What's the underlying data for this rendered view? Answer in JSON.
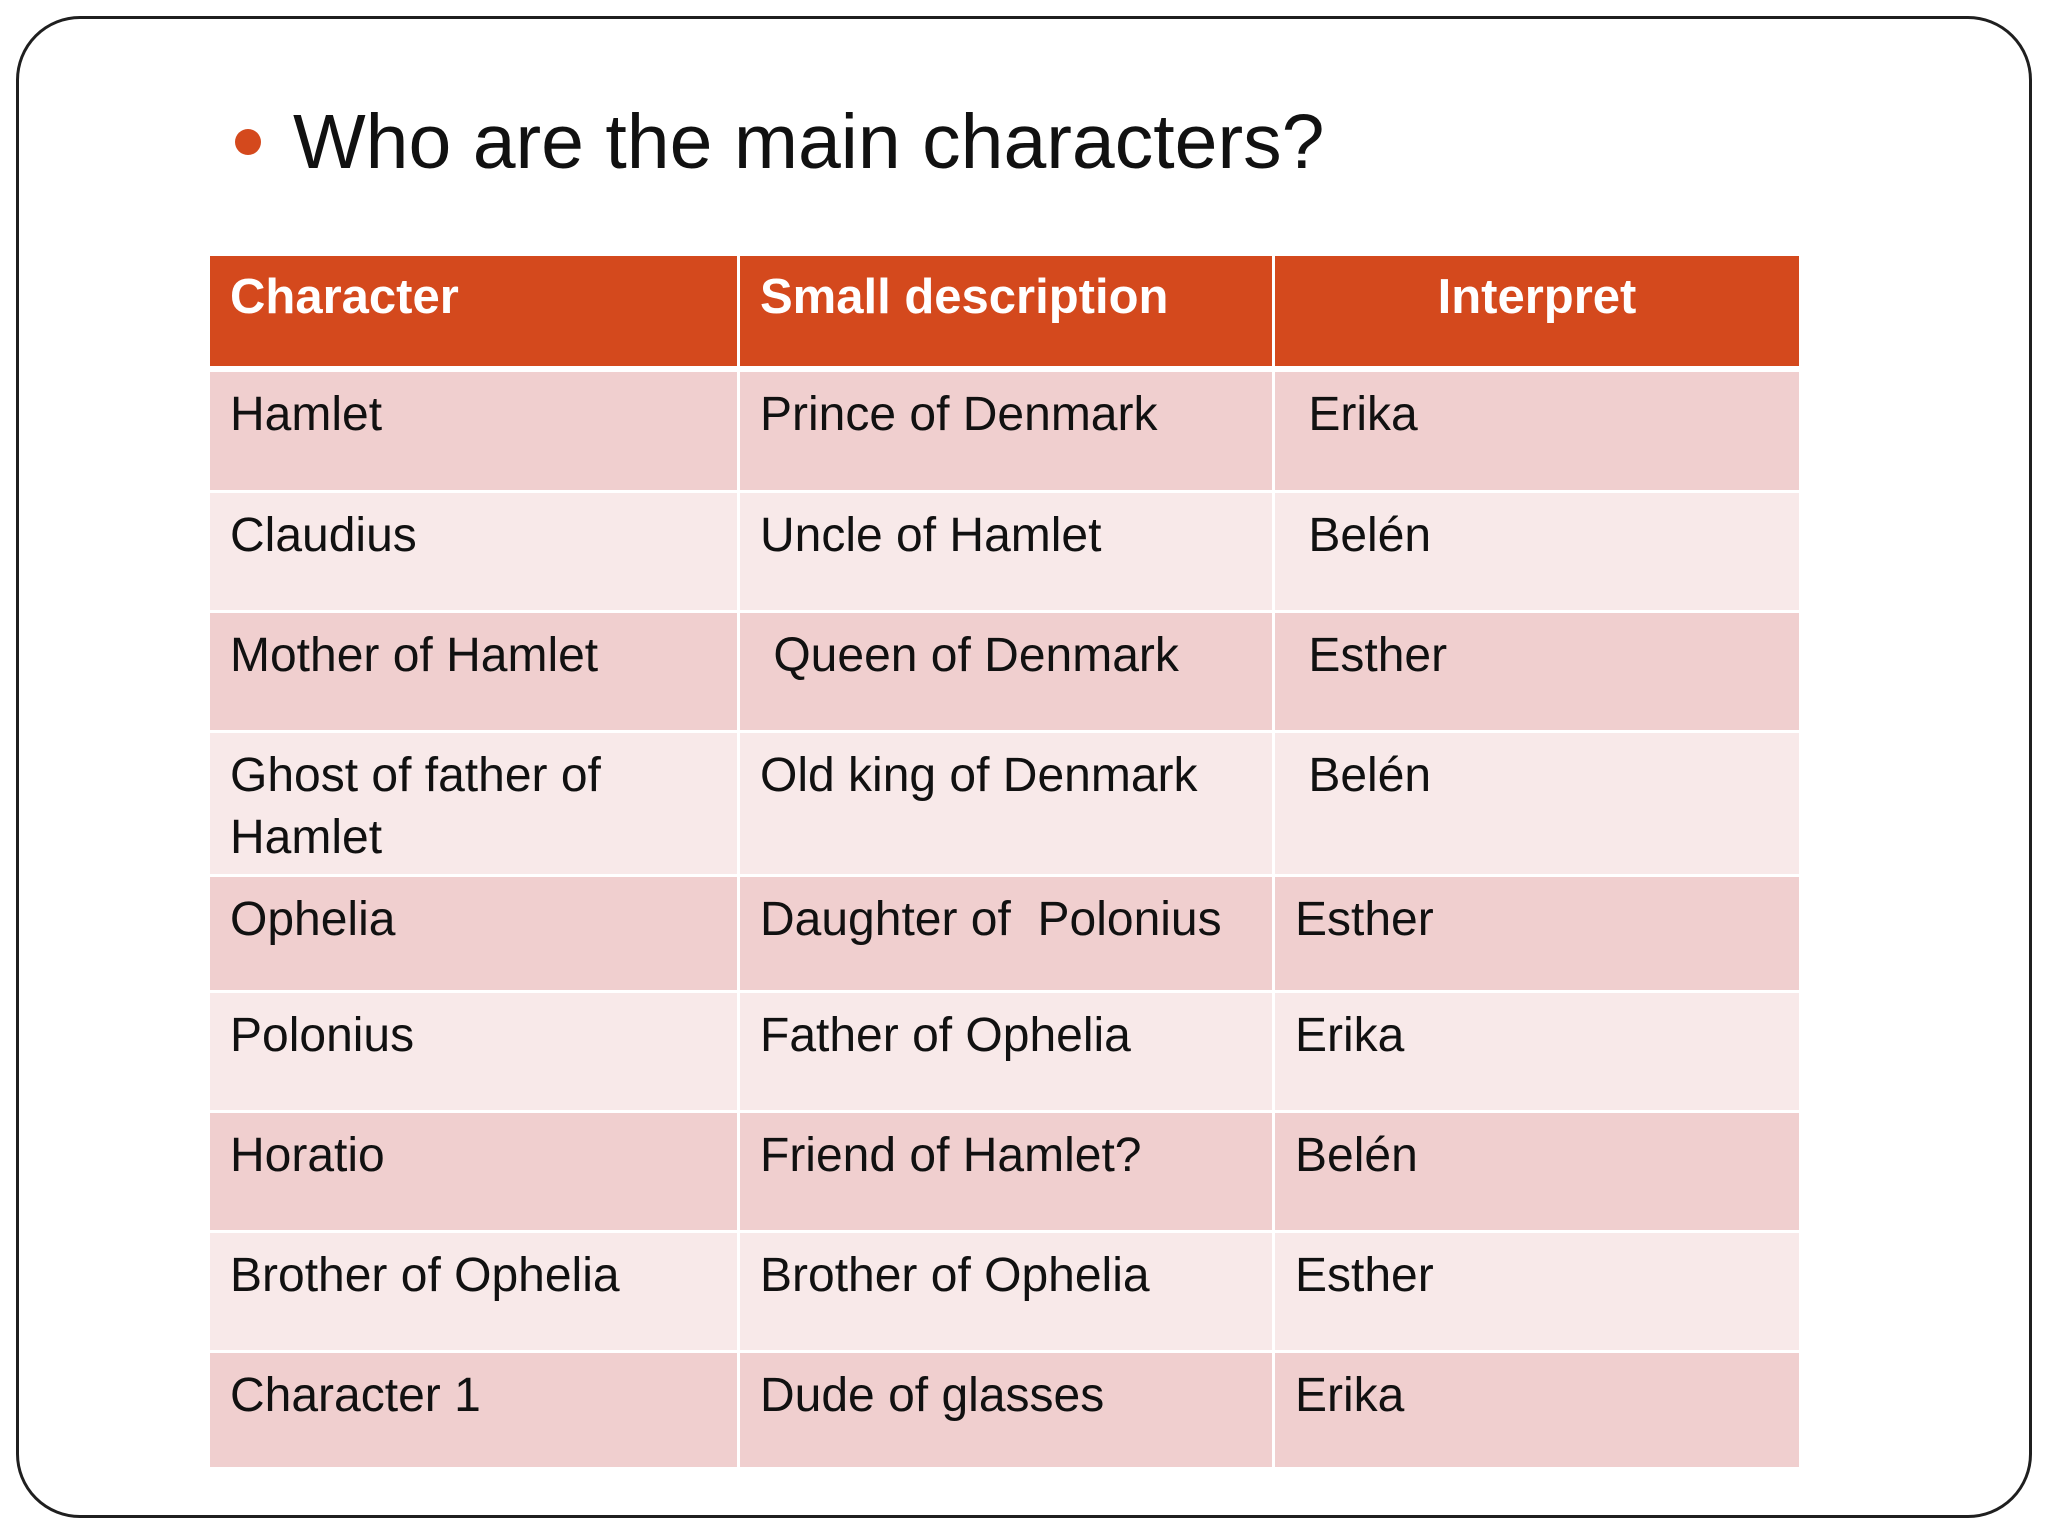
{
  "slide": {
    "title": "Who are the main characters?"
  },
  "colors": {
    "accent": "#d4491d",
    "header_text": "#ffffff",
    "row_odd": "#f0cfcf",
    "row_even": "#f8e9e9",
    "text": "#111111"
  },
  "table": {
    "headers": [
      "Character",
      "Small description",
      "Interpret"
    ],
    "rows": [
      {
        "character": "Hamlet",
        "description": "Prince of Denmark",
        "interpret": " Erika"
      },
      {
        "character": "Claudius",
        "description": "Uncle of Hamlet",
        "interpret": " Belén"
      },
      {
        "character": "Mother of Hamlet",
        "description": " Queen of Denmark",
        "interpret": " Esther"
      },
      {
        "character": "Ghost of father of Hamlet",
        "description": "Old king of Denmark",
        "interpret": " Belén"
      },
      {
        "character": "Ophelia",
        "description": "Daughter of  Polonius",
        "interpret": "Esther"
      },
      {
        "character": "Polonius",
        "description": "Father of Ophelia",
        "interpret": "Erika"
      },
      {
        "character": "Horatio",
        "description": "Friend of Hamlet?",
        "interpret": "Belén"
      },
      {
        "character": "Brother of Ophelia",
        "description": "Brother of Ophelia",
        "interpret": "Esther"
      },
      {
        "character": "Character 1",
        "description": "Dude of glasses",
        "interpret": "Erika"
      }
    ]
  }
}
